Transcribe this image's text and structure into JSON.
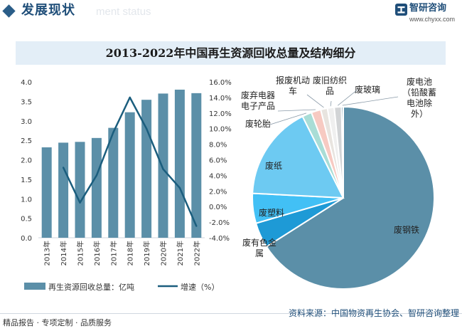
{
  "header": {
    "section_title": "发展现状",
    "ghost_text": "ment status",
    "brand_name": "智研咨询",
    "brand_url": "www.chyxx.com"
  },
  "footer": {
    "tags": "精品报告 · 专项定制 · 品质服务",
    "source": "资料来源：中国物资再生协会、智研咨询整理"
  },
  "colors": {
    "bar": "#5b8fa8",
    "line": "#1b5e7e",
    "accent": "#1f4e79"
  },
  "chart_data": [
    {
      "type": "bar+line",
      "title": "2013-2022年中国再生资源回收总量及结构细分",
      "categories": [
        "2013年",
        "2014年",
        "2015年",
        "2016年",
        "2017年",
        "2018年",
        "2019年",
        "2020年",
        "2021年",
        "2022年"
      ],
      "series": [
        {
          "name": "再生资源回收总量：亿吨",
          "type": "bar",
          "axis": "left",
          "values": [
            2.32,
            2.44,
            2.46,
            2.56,
            2.82,
            3.22,
            3.54,
            3.7,
            3.8,
            3.71
          ]
        },
        {
          "name": "增速（%）",
          "type": "line",
          "axis": "right",
          "values": [
            null,
            5.0,
            0.5,
            4.0,
            9.5,
            14.0,
            10.0,
            4.8,
            2.4,
            -2.5
          ]
        }
      ],
      "left_axis": {
        "ylim": [
          0,
          4.0
        ],
        "ticks": [
          "0.0",
          "0.5",
          "1.0",
          "1.5",
          "2.0",
          "2.5",
          "3.0",
          "3.5",
          "4.0"
        ]
      },
      "right_axis": {
        "ylim": [
          -4,
          16
        ],
        "ticks": [
          "-4.0%",
          "-2.0%",
          "0.0%",
          "2.0%",
          "4.0%",
          "6.0%",
          "8.0%",
          "10.0%",
          "12.0%",
          "14.0%",
          "16.0%"
        ]
      },
      "legend_position": "bottom"
    },
    {
      "type": "pie",
      "slices": [
        {
          "label": "废钢铁",
          "value": 66.0,
          "color": "#5b8fa8"
        },
        {
          "label": "废有色金属",
          "value": 4.5,
          "color": "#1e9ad6"
        },
        {
          "label": "废塑料",
          "value": 5.3,
          "color": "#42c0f5"
        },
        {
          "label": "废纸",
          "value": 16.8,
          "color": "#6dcaf2"
        },
        {
          "label": "废轮胎",
          "value": 1.7,
          "color": "#a9ddd6"
        },
        {
          "label": "废弃电器电子产品",
          "value": 1.7,
          "color": "#f7cac2"
        },
        {
          "label": "报废机动车",
          "value": 1.2,
          "color": "#e8e4df"
        },
        {
          "label": "废旧纺织品",
          "value": 1.2,
          "color": "#efefef"
        },
        {
          "label": "废玻璃",
          "value": 1.3,
          "color": "#d2d4d6"
        },
        {
          "label": "废电池（铅酸蓄电池除外）",
          "value": 0.3,
          "color": "#1b5e7e"
        }
      ]
    }
  ]
}
